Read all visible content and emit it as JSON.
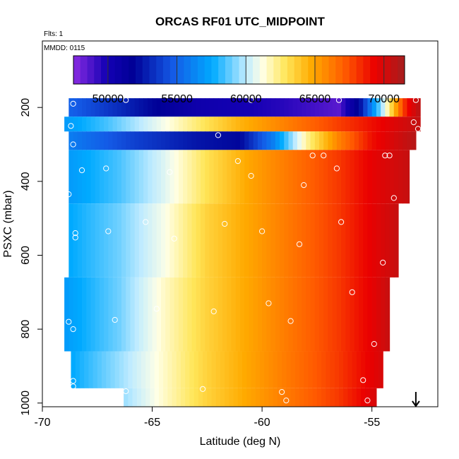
{
  "chart_data": {
    "type": "heatmap",
    "title": "ORCAS RF01 UTC_MIDPOINT",
    "flights_label": "Flts: 1",
    "date_label": "MMDD: 0115",
    "xlabel": "Latitude (deg N)",
    "ylabel": "PSXC (mbar)",
    "xlim": [
      -70,
      -52
    ],
    "ylim": [
      1010,
      20
    ],
    "x_ticks": [
      -70,
      -65,
      -60,
      -55
    ],
    "x_tick_labels": [
      "-70",
      "-65",
      "-60",
      "-55"
    ],
    "y_ticks": [
      200,
      400,
      600,
      800,
      1000
    ],
    "y_tick_labels": [
      "200",
      "400",
      "600",
      "800",
      "1000"
    ],
    "colorbar": {
      "range": [
        47500,
        71500
      ],
      "ticks": [
        50000,
        55000,
        60000,
        65000,
        70000
      ],
      "tick_labels": [
        "50000",
        "55000",
        "60000",
        "65000",
        "70000"
      ]
    },
    "marker_latitude": -53.0,
    "bands": [
      {
        "p_top": 175,
        "p_bottom": 225,
        "lat_start": -68.8,
        "lat_end": -52.8,
        "values": [
          [
            -68.8,
            55000
          ],
          [
            -65,
            52000
          ],
          [
            -63,
            50500
          ],
          [
            -61,
            50000
          ],
          [
            -59,
            49500
          ],
          [
            -56.5,
            48500
          ],
          [
            -55.5,
            52500
          ],
          [
            -54.5,
            60000
          ],
          [
            -53.8,
            66000
          ],
          [
            -53.4,
            69000
          ],
          [
            -52.8,
            71000
          ]
        ]
      },
      {
        "p_top": 225,
        "p_bottom": 265,
        "lat_start": -69.0,
        "lat_end": -52.8,
        "values": [
          [
            -69,
            57000
          ],
          [
            -67,
            58500
          ],
          [
            -65,
            60500
          ],
          [
            -63,
            62500
          ],
          [
            -61,
            64500
          ],
          [
            -59,
            66000
          ],
          [
            -57,
            67500
          ],
          [
            -55,
            69000
          ],
          [
            -53,
            70500
          ]
        ]
      },
      {
        "p_top": 265,
        "p_bottom": 315,
        "lat_start": -68.8,
        "lat_end": -53.0,
        "values": [
          [
            -68.8,
            56000
          ],
          [
            -66,
            54000
          ],
          [
            -63,
            52500
          ],
          [
            -61,
            52000
          ],
          [
            -59.5,
            56000
          ],
          [
            -58,
            62000
          ],
          [
            -56.5,
            66000
          ],
          [
            -55,
            69000
          ],
          [
            -53,
            71000
          ]
        ]
      },
      {
        "p_top": 315,
        "p_bottom": 460,
        "lat_start": -68.8,
        "lat_end": -53.3,
        "values": [
          [
            -68.8,
            57000
          ],
          [
            -66.5,
            58500
          ],
          [
            -64.5,
            60500
          ],
          [
            -62.5,
            63000
          ],
          [
            -60.5,
            65000
          ],
          [
            -58.5,
            66500
          ],
          [
            -56.5,
            68000
          ],
          [
            -55,
            69500
          ],
          [
            -53.3,
            70500
          ]
        ]
      },
      {
        "p_top": 460,
        "p_bottom": 660,
        "lat_start": -68.8,
        "lat_end": -53.8,
        "values": [
          [
            -68.8,
            57500
          ],
          [
            -66.5,
            59000
          ],
          [
            -64.5,
            61000
          ],
          [
            -62.5,
            63500
          ],
          [
            -60.5,
            65000
          ],
          [
            -58.5,
            66500
          ],
          [
            -56.5,
            68000
          ],
          [
            -55,
            69500
          ],
          [
            -53.8,
            70500
          ]
        ]
      },
      {
        "p_top": 660,
        "p_bottom": 860,
        "lat_start": -69.0,
        "lat_end": -54.2,
        "values": [
          [
            -69,
            57000
          ],
          [
            -66.5,
            59000
          ],
          [
            -64.5,
            61500
          ],
          [
            -62.5,
            63500
          ],
          [
            -60.5,
            65000
          ],
          [
            -58.5,
            66500
          ],
          [
            -56.5,
            68000
          ],
          [
            -55,
            69500
          ],
          [
            -54.2,
            70500
          ]
        ]
      },
      {
        "p_top": 860,
        "p_bottom": 960,
        "lat_start": -68.7,
        "lat_end": -54.5,
        "values": [
          [
            -68.7,
            57500
          ],
          [
            -66.5,
            59500
          ],
          [
            -64.5,
            61500
          ],
          [
            -62.5,
            63500
          ],
          [
            -60.5,
            65000
          ],
          [
            -58.5,
            66500
          ],
          [
            -56.5,
            68000
          ],
          [
            -54.5,
            70000
          ]
        ]
      },
      {
        "p_top": 960,
        "p_bottom": 1010,
        "lat_start": -66.3,
        "lat_end": -54.8,
        "values": [
          [
            -66.3,
            59500
          ],
          [
            -64.5,
            61500
          ],
          [
            -62.5,
            63500
          ],
          [
            -60.5,
            65000
          ],
          [
            -58.5,
            66500
          ],
          [
            -56.5,
            68000
          ],
          [
            -54.8,
            70000
          ]
        ]
      }
    ],
    "points": [
      [
        -66.2,
        180
      ],
      [
        -60.5,
        180
      ],
      [
        -56.5,
        180
      ],
      [
        -53.0,
        180
      ],
      [
        -68.6,
        190
      ],
      [
        -68.7,
        250
      ],
      [
        -53.1,
        240
      ],
      [
        -52.9,
        258
      ],
      [
        -68.6,
        300
      ],
      [
        -62.0,
        275
      ],
      [
        -57.7,
        330
      ],
      [
        -57.2,
        330
      ],
      [
        -54.4,
        330
      ],
      [
        -54.2,
        330
      ],
      [
        -61.1,
        345
      ],
      [
        -56.6,
        365
      ],
      [
        -68.2,
        370
      ],
      [
        -67.1,
        365
      ],
      [
        -60.5,
        385
      ],
      [
        -64.2,
        375
      ],
      [
        -58.1,
        410
      ],
      [
        -54.0,
        445
      ],
      [
        -68.8,
        435
      ],
      [
        -65.3,
        510
      ],
      [
        -61.7,
        515
      ],
      [
        -56.4,
        510
      ],
      [
        -60.0,
        535
      ],
      [
        -68.5,
        540
      ],
      [
        -68.5,
        552
      ],
      [
        -67.0,
        535
      ],
      [
        -64.0,
        555
      ],
      [
        -58.3,
        570
      ],
      [
        -54.5,
        620
      ],
      [
        -55.9,
        700
      ],
      [
        -59.7,
        730
      ],
      [
        -62.2,
        752
      ],
      [
        -64.8,
        745
      ],
      [
        -66.7,
        775
      ],
      [
        -68.8,
        780
      ],
      [
        -68.6,
        800
      ],
      [
        -58.7,
        778
      ],
      [
        -54.9,
        840
      ],
      [
        -68.6,
        940
      ],
      [
        -68.6,
        955
      ],
      [
        -66.2,
        968
      ],
      [
        -62.7,
        962
      ],
      [
        -59.1,
        970
      ],
      [
        -58.9,
        993
      ],
      [
        -55.4,
        938
      ],
      [
        -55.2,
        993
      ]
    ]
  }
}
